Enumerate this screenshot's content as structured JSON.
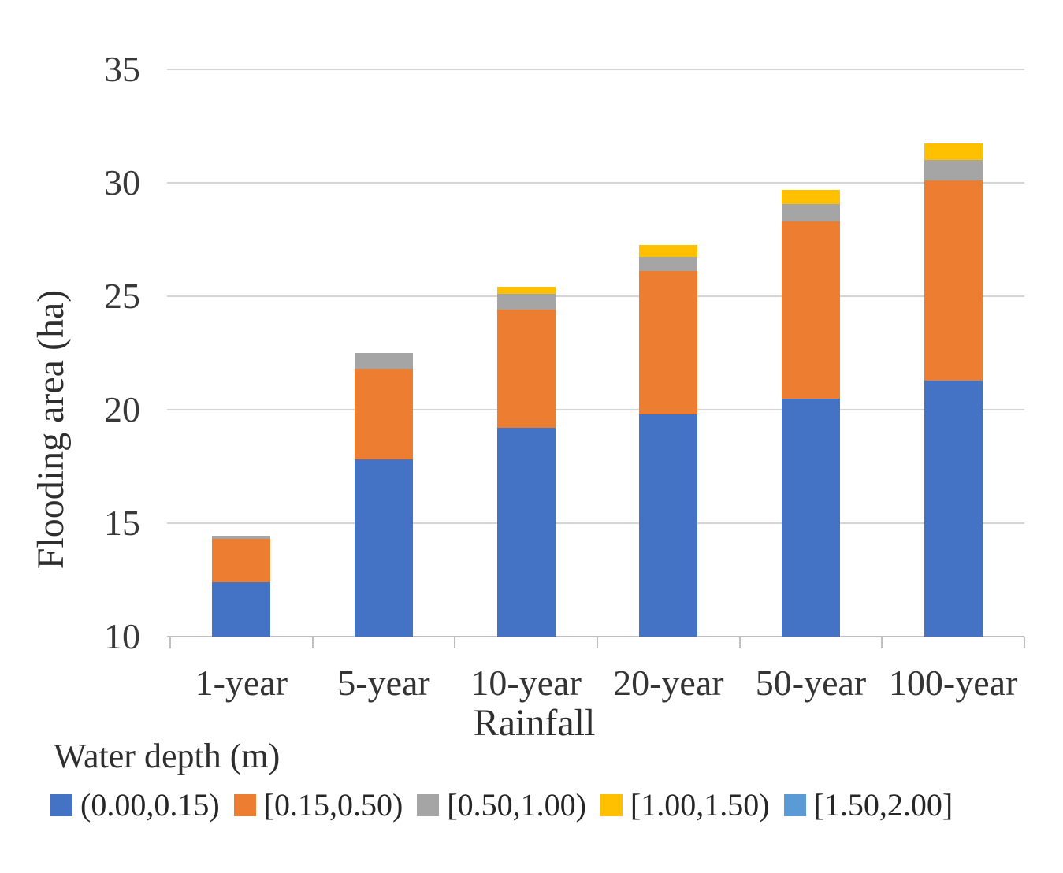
{
  "chart_data": {
    "type": "bar",
    "stacked": true,
    "title": "",
    "xlabel": "Rainfall",
    "ylabel": "Flooding area (ha)",
    "ylim": [
      10,
      35
    ],
    "yticks": [
      10,
      15,
      20,
      25,
      30,
      35
    ],
    "grid": true,
    "legend_position": "bottom",
    "legend_title": "Water depth (m)",
    "categories": [
      "1-year",
      "5-year",
      "10-year",
      "20-year",
      "50-year",
      "100-year"
    ],
    "series": [
      {
        "name": "(0.00,0.15)",
        "color": "#4472C4",
        "values": [
          12.4,
          17.8,
          19.2,
          19.8,
          20.5,
          21.3
        ]
      },
      {
        "name": "[0.15,0.50)",
        "color": "#ED7D31",
        "values": [
          1.9,
          4.0,
          5.2,
          6.3,
          7.8,
          8.8
        ]
      },
      {
        "name": "[0.50,1.00)",
        "color": "#A5A5A5",
        "values": [
          0.15,
          0.7,
          0.7,
          0.65,
          0.75,
          0.9
        ]
      },
      {
        "name": "[1.00,1.50)",
        "color": "#FFC000",
        "values": [
          0.0,
          0.0,
          0.3,
          0.5,
          0.65,
          0.75
        ]
      },
      {
        "name": "[1.50,2.00]",
        "color": "#5B9BD5",
        "values": [
          0.0,
          0.0,
          0.0,
          0.0,
          0.0,
          0.0
        ]
      }
    ],
    "colors": {
      "gridline": "#D4D4D4",
      "axis_line": "#BFBFBF",
      "text": "#303030"
    }
  }
}
